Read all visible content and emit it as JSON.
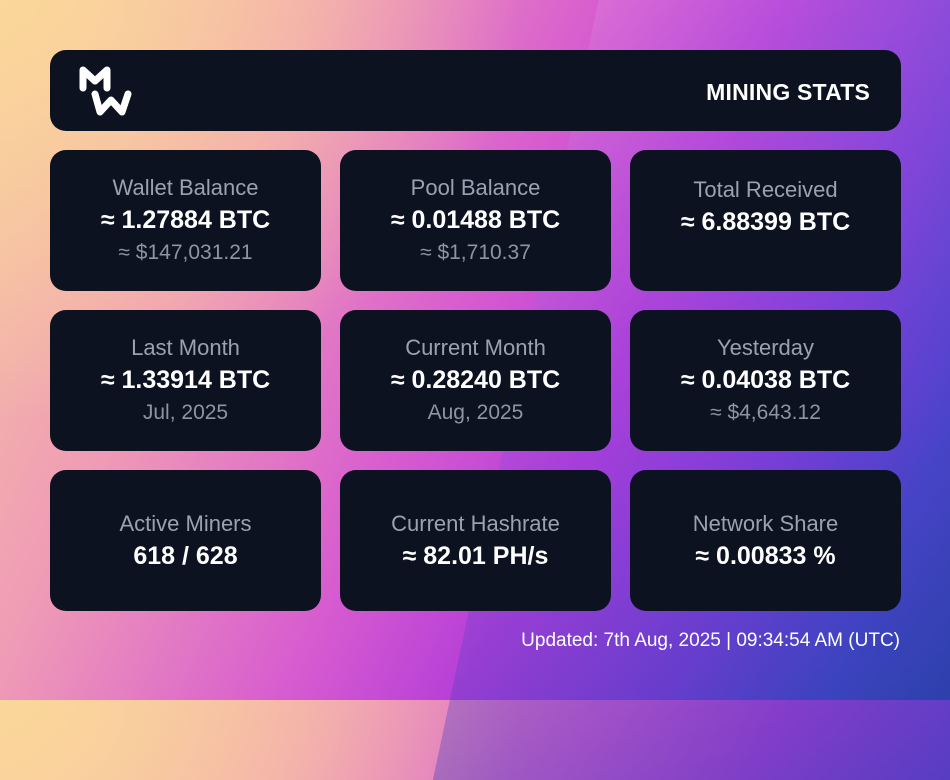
{
  "header": {
    "title": "MINING STATS",
    "logo_icon": "mw-logo-icon"
  },
  "cards": [
    {
      "label": "Wallet Balance",
      "value": "≈ 1.27884 BTC",
      "sub": "≈ $147,031.21"
    },
    {
      "label": "Pool Balance",
      "value": "≈ 0.01488 BTC",
      "sub": "≈ $1,710.37"
    },
    {
      "label": "Total Received",
      "value": "≈ 6.88399 BTC"
    },
    {
      "label": "Last Month",
      "value": "≈ 1.33914 BTC",
      "sub": "Jul, 2025"
    },
    {
      "label": "Current Month",
      "value": "≈ 0.28240 BTC",
      "sub": "Aug, 2025"
    },
    {
      "label": "Yesterday",
      "value": "≈ 0.04038 BTC",
      "sub": "≈ $4,643.12"
    },
    {
      "label": "Active Miners",
      "value": "618 / 628"
    },
    {
      "label": "Current Hashrate",
      "value": "≈ 82.01 PH/s"
    },
    {
      "label": "Network Share",
      "value": "≈ 0.00833 %"
    }
  ],
  "footer": {
    "updated": "Updated: 7th Aug, 2025 | 09:34:54 AM (UTC)"
  },
  "colors": {
    "card_bg": "#0c1220",
    "label": "#9aa2b1",
    "value": "#ffffff"
  }
}
